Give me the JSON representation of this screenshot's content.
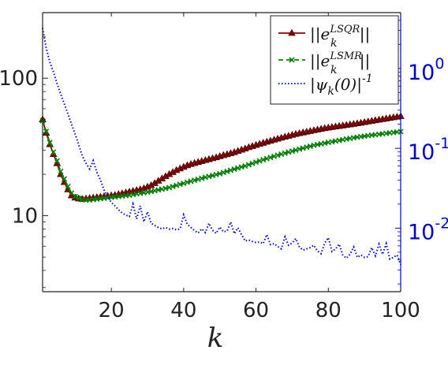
{
  "chart_data": {
    "type": "line",
    "xlabel": "k",
    "x_ticks": [
      20,
      40,
      60,
      80,
      100
    ],
    "left_axis": {
      "scale": "log",
      "ylim": [
        2.8,
        300
      ],
      "ticks": [
        10,
        100
      ],
      "tick_labels": [
        "10",
        "100"
      ]
    },
    "right_axis": {
      "scale": "log",
      "ylim": [
        0.0016,
        5.0
      ],
      "color": "#0000cc",
      "ticks": [
        0.01,
        0.1,
        1
      ],
      "tick_labels": [
        {
          "base": "10",
          "exp": "-2"
        },
        {
          "base": "10",
          "exp": "-1"
        },
        {
          "base": "10",
          "exp": "0"
        }
      ]
    },
    "xlim": [
      1,
      100
    ],
    "legend": {
      "placement": "top-right",
      "entries": [
        {
          "prefix": "||e",
          "sub": "k",
          "sup": "LSQR",
          "suffix": "||"
        },
        {
          "prefix": "||e",
          "sub": "k",
          "sup": "LSMR",
          "suffix": "||"
        },
        {
          "prefix": "|ψ",
          "sub": "k",
          "mid": "(0)|",
          "sup": "-1",
          "suffix": ""
        }
      ]
    },
    "series": [
      {
        "key": "lsqr",
        "axis": "left",
        "color": "#8b0000",
        "marker": "triangle",
        "line_style": "solid",
        "x": [
          1,
          2,
          3,
          4,
          5,
          6,
          7,
          8,
          9,
          10,
          11,
          12,
          13,
          14,
          15,
          16,
          17,
          18,
          19,
          20,
          21,
          22,
          23,
          24,
          25,
          26,
          27,
          28,
          29,
          30,
          31,
          32,
          33,
          34,
          35,
          36,
          37,
          38,
          39,
          40,
          41,
          42,
          43,
          44,
          45,
          46,
          47,
          48,
          49,
          50,
          51,
          52,
          53,
          54,
          55,
          56,
          57,
          58,
          59,
          60,
          61,
          62,
          63,
          64,
          65,
          66,
          67,
          68,
          69,
          70,
          71,
          72,
          73,
          74,
          75,
          76,
          77,
          78,
          79,
          80,
          81,
          82,
          83,
          84,
          85,
          86,
          87,
          88,
          89,
          90,
          91,
          92,
          93,
          94,
          95,
          96,
          97,
          98,
          99,
          100
        ],
        "y": [
          50,
          40,
          33,
          28,
          24,
          20,
          17.5,
          15.5,
          14,
          13.5,
          13.3,
          13.2,
          13.3,
          13.4,
          13.5,
          13.6,
          13.7,
          13.8,
          13.9,
          14.0,
          14.1,
          14.3,
          14.5,
          14.7,
          14.9,
          15.1,
          15.3,
          15.5,
          15.8,
          16.2,
          16.6,
          17.2,
          17.9,
          18.6,
          19.3,
          20.0,
          20.7,
          21.4,
          22.0,
          22.6,
          23.2,
          23.7,
          24.1,
          24.5,
          24.9,
          25.3,
          25.7,
          26.1,
          26.5,
          27.0,
          27.5,
          27.9,
          28.4,
          28.9,
          29.5,
          30.1,
          30.7,
          31.4,
          32.0,
          32.6,
          33.2,
          33.8,
          34.4,
          35.0,
          35.6,
          36.2,
          36.8,
          37.4,
          38.0,
          38.6,
          39.2,
          39.7,
          40.2,
          40.7,
          41.2,
          41.7,
          42.2,
          42.7,
          43.2,
          43.6,
          44.0,
          44.4,
          44.8,
          45.2,
          45.6,
          46.0,
          46.4,
          46.8,
          47.3,
          47.8,
          48.3,
          48.8,
          49.3,
          49.8,
          50.3,
          50.8,
          51.3,
          51.8,
          52.3,
          52.8
        ]
      },
      {
        "key": "lsmr",
        "axis": "left",
        "color": "#008000",
        "marker": "x",
        "line_style": "dashed",
        "x": [
          1,
          2,
          3,
          4,
          5,
          6,
          7,
          8,
          9,
          10,
          11,
          12,
          13,
          14,
          15,
          16,
          17,
          18,
          19,
          20,
          21,
          22,
          23,
          24,
          25,
          26,
          27,
          28,
          29,
          30,
          31,
          32,
          33,
          34,
          35,
          36,
          37,
          38,
          39,
          40,
          41,
          42,
          43,
          44,
          45,
          46,
          47,
          48,
          49,
          50,
          51,
          52,
          53,
          54,
          55,
          56,
          57,
          58,
          59,
          60,
          61,
          62,
          63,
          64,
          65,
          66,
          67,
          68,
          69,
          70,
          71,
          72,
          73,
          74,
          75,
          76,
          77,
          78,
          79,
          80,
          81,
          82,
          83,
          84,
          85,
          86,
          87,
          88,
          89,
          90,
          91,
          92,
          93,
          94,
          95,
          96,
          97,
          98,
          99,
          100
        ],
        "y": [
          49,
          41,
          34,
          29,
          25,
          21,
          18.5,
          16.3,
          14.6,
          13.8,
          13.4,
          13.1,
          13.0,
          13.0,
          13.1,
          13.2,
          13.3,
          13.4,
          13.5,
          13.6,
          13.7,
          13.8,
          13.9,
          14.0,
          14.1,
          14.25,
          14.4,
          14.55,
          14.7,
          14.85,
          15.0,
          15.2,
          15.4,
          15.6,
          15.8,
          16.0,
          16.3,
          16.6,
          16.9,
          17.2,
          17.5,
          17.8,
          18.1,
          18.4,
          18.7,
          19.0,
          19.3,
          19.6,
          19.9,
          20.2,
          20.6,
          21.0,
          21.4,
          21.8,
          22.2,
          22.6,
          23.0,
          23.5,
          24.0,
          24.5,
          25.0,
          25.5,
          26.0,
          26.5,
          27.0,
          27.5,
          28.0,
          28.5,
          29.0,
          29.5,
          30.0,
          30.5,
          31.0,
          31.5,
          32.0,
          32.5,
          32.9,
          33.3,
          33.7,
          34.1,
          34.5,
          34.9,
          35.3,
          35.7,
          36.1,
          36.5,
          36.9,
          37.3,
          37.6,
          37.9,
          38.2,
          38.5,
          38.8,
          39.1,
          39.4,
          39.7,
          40.0,
          40.3,
          40.6,
          40.9
        ]
      },
      {
        "key": "psi",
        "axis": "right",
        "color": "#0000cc",
        "marker": "none",
        "line_style": "dotted",
        "x": [
          1,
          2,
          3,
          4,
          5,
          6,
          7,
          8,
          9,
          10,
          11,
          12,
          13,
          14,
          15,
          16,
          17,
          18,
          19,
          20,
          21,
          22,
          23,
          24,
          25,
          26,
          27,
          28,
          29,
          30,
          31,
          32,
          33,
          34,
          35,
          36,
          37,
          38,
          39,
          40,
          41,
          42,
          43,
          44,
          45,
          46,
          47,
          48,
          49,
          50,
          51,
          52,
          53,
          54,
          55,
          56,
          57,
          58,
          59,
          60,
          61,
          62,
          63,
          64,
          65,
          66,
          67,
          68,
          69,
          70,
          71,
          72,
          73,
          74,
          75,
          76,
          77,
          78,
          79,
          80,
          81,
          82,
          83,
          84,
          85,
          86,
          87,
          88,
          89,
          90,
          91,
          92,
          93,
          94,
          95,
          96,
          97,
          98,
          99,
          100
        ],
        "y": [
          3.2,
          1.8,
          1.2,
          0.9,
          0.65,
          0.48,
          0.36,
          0.27,
          0.2,
          0.15,
          0.11,
          0.08,
          0.065,
          0.055,
          0.07,
          0.05,
          0.04,
          0.03,
          0.025,
          0.021,
          0.019,
          0.017,
          0.0155,
          0.0145,
          0.014,
          0.02,
          0.013,
          0.019,
          0.012,
          0.016,
          0.0115,
          0.0108,
          0.0102,
          0.0098,
          0.0102,
          0.0097,
          0.0099,
          0.0095,
          0.0098,
          0.0147,
          0.0112,
          0.0102,
          0.0093,
          0.0087,
          0.0098,
          0.0088,
          0.0115,
          0.0094,
          0.0086,
          0.0103,
          0.009,
          0.0092,
          0.0119,
          0.0085,
          0.0101,
          0.0083,
          0.0069,
          0.0071,
          0.0068,
          0.0066,
          0.0067,
          0.0064,
          0.0083,
          0.0062,
          0.0064,
          0.0059,
          0.0055,
          0.0078,
          0.0061,
          0.0065,
          0.0074,
          0.0058,
          0.0053,
          0.0055,
          0.0057,
          0.0061,
          0.0052,
          0.0048,
          0.0065,
          0.0076,
          0.0051,
          0.0055,
          0.0063,
          0.0046,
          0.0042,
          0.0047,
          0.0058,
          0.0043,
          0.0046,
          0.0043,
          0.0044,
          0.0057,
          0.0045,
          0.0063,
          0.0047,
          0.0064,
          0.0041,
          0.0043,
          0.0046,
          0.0035
        ]
      }
    ]
  }
}
